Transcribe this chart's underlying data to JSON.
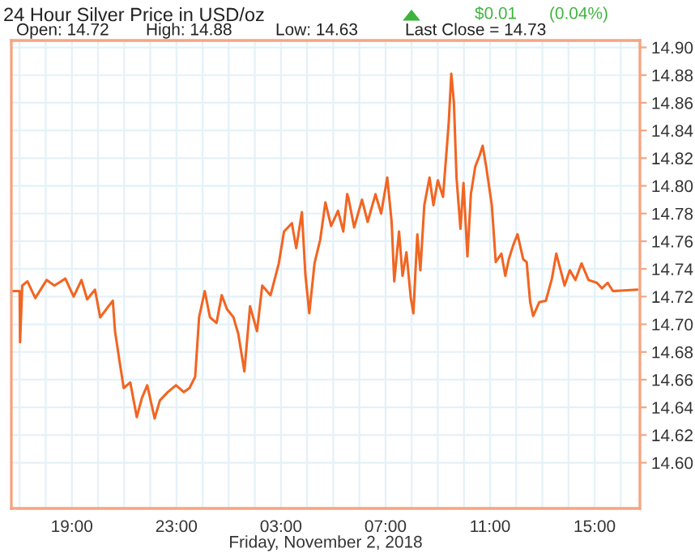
{
  "chart_data": {
    "type": "line",
    "title": "24 Hour Silver Price in USD/oz",
    "annotations": [
      "$0.01",
      "(0.04%)",
      "Open: 14.72",
      "High: 14.88",
      "Low: 14.63",
      "Last Close = 14.73"
    ],
    "xlabel": "Friday, November 2, 2018",
    "series": [
      {
        "color": "#f26522",
        "x": [
          "2018-11-01T16:41",
          "2018-11-01T17:00",
          "2018-11-01T17:01",
          "2018-11-01T17:06",
          "2018-11-01T17:18",
          "2018-11-01T17:36",
          "2018-11-01T18:02",
          "2018-11-01T18:20",
          "2018-11-01T18:45",
          "2018-11-01T19:04",
          "2018-11-01T19:22",
          "2018-11-01T19:35",
          "2018-11-01T19:53",
          "2018-11-01T20:05",
          "2018-11-01T20:24",
          "2018-11-01T20:34",
          "2018-11-01T20:39",
          "2018-11-01T20:49",
          "2018-11-01T20:59",
          "2018-11-01T21:14",
          "2018-11-01T21:29",
          "2018-11-01T21:41",
          "2018-11-01T21:53",
          "2018-11-01T22:10",
          "2018-11-01T22:22",
          "2018-11-01T22:40",
          "2018-11-01T22:59",
          "2018-11-01T23:17",
          "2018-11-01T23:30",
          "2018-11-01T23:43",
          "2018-11-01T23:52",
          "2018-11-02T00:05",
          "2018-11-02T00:17",
          "2018-11-02T00:32",
          "2018-11-02T00:44",
          "2018-11-02T00:56",
          "2018-11-02T01:11",
          "2018-11-02T01:22",
          "2018-11-02T01:36",
          "2018-11-02T01:49",
          "2018-11-02T02:05",
          "2018-11-02T02:17",
          "2018-11-02T02:36",
          "2018-11-02T02:55",
          "2018-11-02T03:07",
          "2018-11-02T03:25",
          "2018-11-02T03:35",
          "2018-11-02T03:48",
          "2018-11-02T03:56",
          "2018-11-02T04:05",
          "2018-11-02T04:17",
          "2018-11-02T04:30",
          "2018-11-02T04:42",
          "2018-11-02T04:55",
          "2018-11-02T05:11",
          "2018-11-02T05:23",
          "2018-11-02T05:32",
          "2018-11-02T05:35",
          "2018-11-02T05:48",
          "2018-11-02T06:06",
          "2018-11-02T06:19",
          "2018-11-02T06:37",
          "2018-11-02T06:50",
          "2018-11-02T07:04",
          "2018-11-02T07:14",
          "2018-11-02T07:20",
          "2018-11-02T07:31",
          "2018-11-02T07:39",
          "2018-11-02T07:48",
          "2018-11-02T07:58",
          "2018-11-02T08:04",
          "2018-11-02T08:13",
          "2018-11-02T08:20",
          "2018-11-02T08:29",
          "2018-11-02T08:41",
          "2018-11-02T08:50",
          "2018-11-02T09:00",
          "2018-11-02T09:12",
          "2018-11-02T09:25",
          "2018-11-02T09:31",
          "2018-11-02T09:37",
          "2018-11-02T09:43",
          "2018-11-02T09:52",
          "2018-11-02T09:59",
          "2018-11-02T10:08",
          "2018-11-02T10:16",
          "2018-11-02T10:26",
          "2018-11-02T10:36",
          "2018-11-02T10:43",
          "2018-11-02T10:51",
          "2018-11-02T11:04",
          "2018-11-02T11:13",
          "2018-11-02T11:26",
          "2018-11-02T11:35",
          "2018-11-02T11:43",
          "2018-11-02T11:53",
          "2018-11-02T12:03",
          "2018-11-02T12:16",
          "2018-11-02T12:24",
          "2018-11-02T12:32",
          "2018-11-02T12:39",
          "2018-11-02T12:53",
          "2018-11-02T13:08",
          "2018-11-02T13:22",
          "2018-11-02T13:32",
          "2018-11-02T13:42",
          "2018-11-02T13:51",
          "2018-11-02T14:03",
          "2018-11-02T14:16",
          "2018-11-02T14:30",
          "2018-11-02T14:46",
          "2018-11-02T15:05",
          "2018-11-02T15:17",
          "2018-11-02T15:30",
          "2018-11-02T15:42",
          "2018-11-02T16:38"
        ],
        "values": [
          14.724,
          14.724,
          14.687,
          14.728,
          14.731,
          14.719,
          14.732,
          14.728,
          14.733,
          14.72,
          14.732,
          14.718,
          14.725,
          14.705,
          14.713,
          14.717,
          14.695,
          14.674,
          14.654,
          14.658,
          14.633,
          14.647,
          14.656,
          14.632,
          14.645,
          14.651,
          14.656,
          14.651,
          14.654,
          14.662,
          14.705,
          14.724,
          14.705,
          14.701,
          14.721,
          14.711,
          14.705,
          14.693,
          14.666,
          14.713,
          14.695,
          14.728,
          14.721,
          14.744,
          14.767,
          14.773,
          14.755,
          14.781,
          14.736,
          14.708,
          14.744,
          14.761,
          14.788,
          14.771,
          14.782,
          14.767,
          14.794,
          14.791,
          14.77,
          14.79,
          14.774,
          14.794,
          14.78,
          14.806,
          14.774,
          14.731,
          14.767,
          14.735,
          14.752,
          14.719,
          14.708,
          14.765,
          14.739,
          14.786,
          14.806,
          14.786,
          14.804,
          14.792,
          14.845,
          14.881,
          14.86,
          14.806,
          14.769,
          14.802,
          14.749,
          14.794,
          14.814,
          14.822,
          14.829,
          14.814,
          14.786,
          14.745,
          14.751,
          14.735,
          14.747,
          14.757,
          14.765,
          14.747,
          14.745,
          14.716,
          14.706,
          14.716,
          14.717,
          14.733,
          14.751,
          14.739,
          14.728,
          14.739,
          14.732,
          14.744,
          14.732,
          14.73,
          14.726,
          14.73,
          14.724,
          14.725
        ]
      }
    ],
    "xlim": [
      "2018-11-01T16:41",
      "2018-11-02T16:44"
    ],
    "xticks": [
      {
        "value": "2018-11-01T17:00",
        "label": null
      },
      {
        "value": "2018-11-01T18:00",
        "label": null
      },
      {
        "value": "2018-11-01T19:00",
        "label": "19:00"
      },
      {
        "value": "2018-11-01T20:00",
        "label": null
      },
      {
        "value": "2018-11-01T21:00",
        "label": null
      },
      {
        "value": "2018-11-01T22:00",
        "label": null
      },
      {
        "value": "2018-11-01T23:00",
        "label": "23:00"
      },
      {
        "value": "2018-11-02T00:00",
        "label": null
      },
      {
        "value": "2018-11-02T01:00",
        "label": null
      },
      {
        "value": "2018-11-02T02:00",
        "label": null
      },
      {
        "value": "2018-11-02T03:00",
        "label": "03:00"
      },
      {
        "value": "2018-11-02T04:00",
        "label": null
      },
      {
        "value": "2018-11-02T05:00",
        "label": null
      },
      {
        "value": "2018-11-02T06:00",
        "label": null
      },
      {
        "value": "2018-11-02T07:00",
        "label": "07:00"
      },
      {
        "value": "2018-11-02T08:00",
        "label": null
      },
      {
        "value": "2018-11-02T09:00",
        "label": null
      },
      {
        "value": "2018-11-02T10:00",
        "label": null
      },
      {
        "value": "2018-11-02T11:00",
        "label": "11:00"
      },
      {
        "value": "2018-11-02T12:00",
        "label": null
      },
      {
        "value": "2018-11-02T13:00",
        "label": null
      },
      {
        "value": "2018-11-02T14:00",
        "label": null
      },
      {
        "value": "2018-11-02T15:00",
        "label": "15:00"
      },
      {
        "value": "2018-11-02T16:00",
        "label": null
      }
    ],
    "ylim": [
      14.567,
      14.905
    ],
    "yticks": [
      {
        "value": 14.6,
        "label": "14.60"
      },
      {
        "value": 14.62,
        "label": "14.62"
      },
      {
        "value": 14.64,
        "label": "14.64"
      },
      {
        "value": 14.66,
        "label": "14.66"
      },
      {
        "value": 14.68,
        "label": "14.68"
      },
      {
        "value": 14.7,
        "label": "14.70"
      },
      {
        "value": 14.72,
        "label": "14.72"
      },
      {
        "value": 14.74,
        "label": "14.74"
      },
      {
        "value": 14.76,
        "label": "14.76"
      },
      {
        "value": 14.78,
        "label": "14.78"
      },
      {
        "value": 14.8,
        "label": "14.80"
      },
      {
        "value": 14.82,
        "label": "14.82"
      },
      {
        "value": 14.84,
        "label": "14.84"
      },
      {
        "value": 14.86,
        "label": "14.86"
      },
      {
        "value": 14.88,
        "label": "14.88"
      },
      {
        "value": 14.9,
        "label": "14.90"
      }
    ],
    "grid": true
  }
}
